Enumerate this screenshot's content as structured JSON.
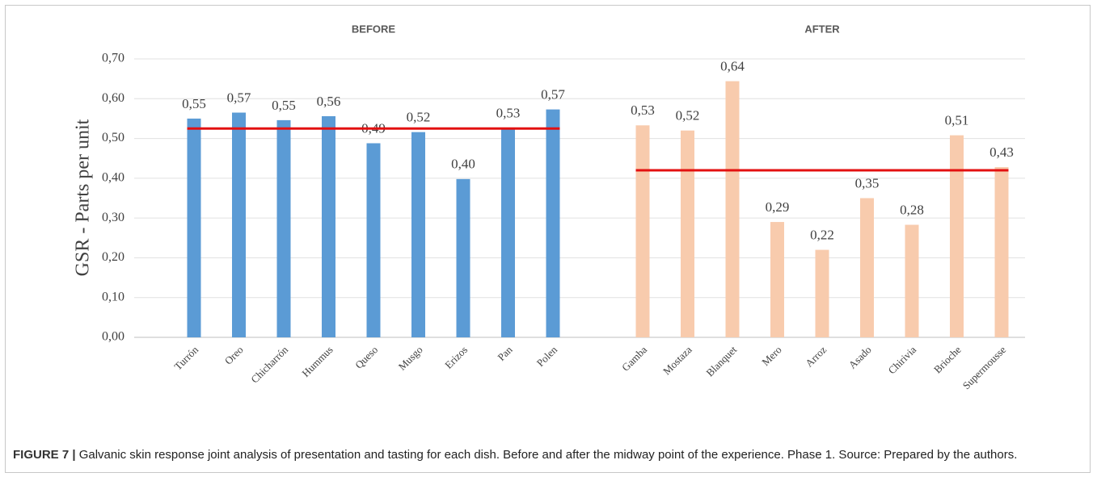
{
  "chart_data": {
    "type": "bar",
    "y_label": "GSR - Parts per unit",
    "ylim": [
      0,
      0.7
    ],
    "yticks": [
      {
        "value": 0,
        "label": "0,00"
      },
      {
        "value": 0.1,
        "label": "0,10"
      },
      {
        "value": 0.2,
        "label": "0,20"
      },
      {
        "value": 0.3,
        "label": "0,30"
      },
      {
        "value": 0.4,
        "label": "0,40"
      },
      {
        "value": 0.5,
        "label": "0,50"
      },
      {
        "value": 0.6,
        "label": "0,60"
      },
      {
        "value": 0.7,
        "label": "0,70"
      }
    ],
    "grid": true,
    "mean_color": "#e31010",
    "groups": [
      {
        "name": "BEFORE",
        "color": "#5b9bd5",
        "categories": [
          "Turrón",
          "Oreo",
          "Chicharrón",
          "Hummus",
          "Queso",
          "Musgo",
          "Erizos",
          "Pan",
          "Polen"
        ],
        "values": [
          0.55,
          0.565,
          0.546,
          0.556,
          0.488,
          0.516,
          0.398,
          0.526,
          0.573
        ],
        "value_labels": [
          "0,55",
          "0,57",
          "0,55",
          "0,56",
          "0,49",
          "0,52",
          "0,40",
          "0,53",
          "0,57"
        ],
        "mean": 0.525
      },
      {
        "name": "AFTER",
        "color": "#f8cbad",
        "categories": [
          "Gamba",
          "Mostaza",
          "Blanquet",
          "Mero",
          "Arroz",
          "Asado",
          "Chirivia",
          "Brioche",
          "Supermousse"
        ],
        "values": [
          0.533,
          0.52,
          0.644,
          0.29,
          0.22,
          0.35,
          0.283,
          0.508,
          0.428
        ],
        "value_labels": [
          "0,53",
          "0,52",
          "0,64",
          "0,29",
          "0,22",
          "0,35",
          "0,28",
          "0,51",
          "0,43"
        ],
        "mean": 0.42
      }
    ]
  },
  "caption": {
    "label": "FIGURE 7 |",
    "text": " Galvanic skin response joint analysis of presentation and tasting for each dish. Before and after the midway point of the experience. Phase 1. Source: Prepared by the authors."
  }
}
